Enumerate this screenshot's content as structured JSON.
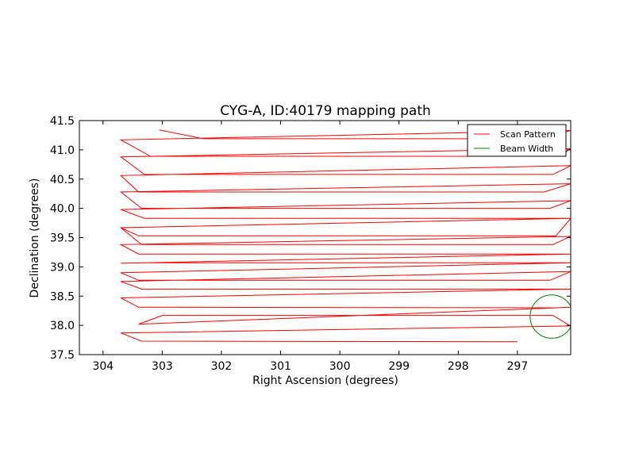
{
  "chart_data": {
    "type": "line",
    "title": "CYG-A, ID:40179 mapping path",
    "xlabel": "Right Ascension (degrees)",
    "ylabel": "Declination (degrees)",
    "xlim": [
      304.4,
      296.1
    ],
    "ylim": [
      37.5,
      41.5
    ],
    "x_reversed": true,
    "xticks": [
      304,
      303,
      302,
      301,
      300,
      299,
      298,
      297
    ],
    "yticks": [
      37.5,
      38.0,
      38.5,
      39.0,
      39.5,
      40.0,
      40.5,
      41.0,
      41.5
    ],
    "xtick_labels": [
      "304",
      "303",
      "302",
      "301",
      "300",
      "299",
      "298",
      "297"
    ],
    "ytick_labels": [
      "37.5",
      "38.0",
      "38.5",
      "39.0",
      "39.5",
      "40.0",
      "40.5",
      "41.0",
      "41.5"
    ],
    "grid": false,
    "legend_position": "top-right",
    "series": [
      {
        "name": "Scan Pattern",
        "color": "#ff0000",
        "x": [
          297.0,
          303.35,
          303.7,
          296.1,
          296.4,
          303.0,
          303.4,
          296.1,
          296.35,
          303.4,
          303.7,
          296.1,
          296.55,
          303.35,
          303.7,
          296.1,
          296.45,
          303.4,
          303.7,
          296.1,
          296.45,
          303.35,
          303.7,
          296.1,
          296.5,
          303.4,
          303.7,
          296.1,
          296.4,
          303.35,
          303.7,
          296.1,
          296.35,
          303.4,
          303.7,
          296.1,
          296.5,
          303.3,
          303.7,
          296.1,
          296.45,
          303.35,
          303.7,
          296.1,
          296.55,
          303.4,
          303.7,
          296.1,
          296.4,
          303.3,
          303.7,
          296.1,
          296.3,
          303.2,
          303.7,
          296.1,
          296.6,
          302.3,
          303.05
        ],
        "y": [
          37.72,
          37.73,
          37.87,
          37.99,
          38.17,
          38.17,
          38.02,
          38.31,
          38.3,
          38.31,
          38.47,
          38.62,
          38.62,
          38.62,
          38.75,
          38.92,
          38.77,
          38.77,
          38.9,
          39.07,
          39.07,
          39.07,
          39.06,
          39.22,
          39.22,
          39.22,
          39.38,
          39.52,
          39.38,
          39.38,
          39.67,
          39.83,
          39.53,
          39.53,
          39.67,
          39.83,
          39.83,
          39.83,
          39.98,
          40.13,
          40.0,
          40.0,
          40.28,
          40.42,
          40.28,
          40.28,
          40.56,
          40.73,
          40.58,
          40.58,
          40.88,
          41.02,
          40.89,
          40.89,
          41.17,
          41.33,
          41.19,
          41.19,
          41.34
        ]
      },
      {
        "name": "Beam Width",
        "color": "#008000",
        "x": [],
        "y": []
      }
    ],
    "beam_circle": {
      "center_x": 296.42,
      "center_y": 38.15,
      "radius_deg": 0.37
    }
  }
}
